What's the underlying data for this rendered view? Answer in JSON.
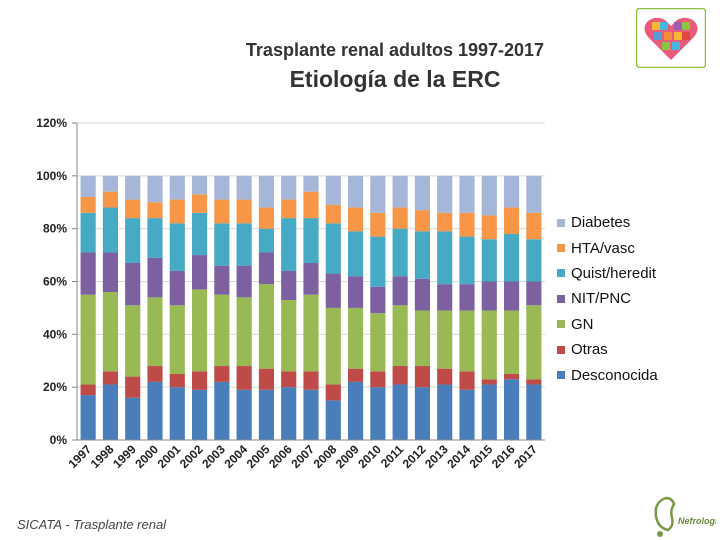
{
  "header": {
    "subtitle": "Trasplante renal adultos 1997-2017",
    "title": "Etiología de la ERC"
  },
  "footer": {
    "source": "SICATA - Trasplante renal"
  },
  "logos": {
    "nephrology_text": "Nefrología"
  },
  "chart_data": {
    "type": "bar",
    "stacked": true,
    "percent": true,
    "title": "Etiología de la ERC",
    "xlabel": "",
    "ylabel": "",
    "ylim": [
      0,
      120
    ],
    "yticks": [
      0,
      20,
      40,
      60,
      80,
      100,
      120
    ],
    "ytick_labels": [
      "0%",
      "20%",
      "40%",
      "60%",
      "80%",
      "100%",
      "120%"
    ],
    "legend_position": "right",
    "categories": [
      "1997",
      "1998",
      "1999",
      "2000",
      "2001",
      "2002",
      "2003",
      "2004",
      "2005",
      "2006",
      "2007",
      "2008",
      "2009",
      "2010",
      "2011",
      "2012",
      "2013",
      "2014",
      "2015",
      "2016",
      "2017"
    ],
    "series": [
      {
        "name": "Desconocida",
        "color": "#4a7ebb",
        "values": [
          17,
          21,
          16,
          22,
          20,
          19,
          22,
          19,
          19,
          20,
          19,
          15,
          22,
          20,
          21,
          20,
          21,
          19,
          21,
          23,
          21
        ]
      },
      {
        "name": "Otras",
        "color": "#be4b48",
        "values": [
          4,
          5,
          8,
          6,
          5,
          7,
          6,
          9,
          8,
          6,
          7,
          6,
          5,
          6,
          7,
          8,
          6,
          7,
          2,
          2,
          2
        ]
      },
      {
        "name": "GN",
        "color": "#98b954",
        "values": [
          34,
          30,
          27,
          26,
          26,
          31,
          27,
          26,
          32,
          27,
          29,
          29,
          23,
          22,
          23,
          21,
          22,
          23,
          26,
          24,
          28
        ]
      },
      {
        "name": "NIT/PNC",
        "color": "#7d60a0",
        "values": [
          16,
          15,
          16,
          15,
          13,
          13,
          11,
          12,
          12,
          11,
          12,
          13,
          12,
          10,
          11,
          12,
          10,
          10,
          11,
          11,
          9
        ]
      },
      {
        "name": "Quist/heredit",
        "color": "#46aac5",
        "values": [
          15,
          17,
          17,
          15,
          18,
          16,
          16,
          16,
          9,
          20,
          17,
          19,
          17,
          19,
          18,
          18,
          20,
          18,
          16,
          18,
          16
        ]
      },
      {
        "name": "HTA/vasc",
        "color": "#f79646",
        "values": [
          6,
          6,
          7,
          6,
          9,
          7,
          9,
          9,
          8,
          7,
          10,
          7,
          9,
          9,
          8,
          8,
          7,
          9,
          9,
          10,
          10
        ]
      },
      {
        "name": "Diabetes",
        "color": "#a5b6d8",
        "values": [
          8,
          6,
          9,
          10,
          9,
          7,
          9,
          9,
          12,
          9,
          6,
          11,
          12,
          14,
          12,
          13,
          14,
          14,
          15,
          12,
          14
        ]
      }
    ],
    "legend_order": [
      "Diabetes",
      "HTA/vasc",
      "Quist/heredit",
      "NIT/PNC",
      "GN",
      "Otras",
      "Desconocida"
    ]
  }
}
